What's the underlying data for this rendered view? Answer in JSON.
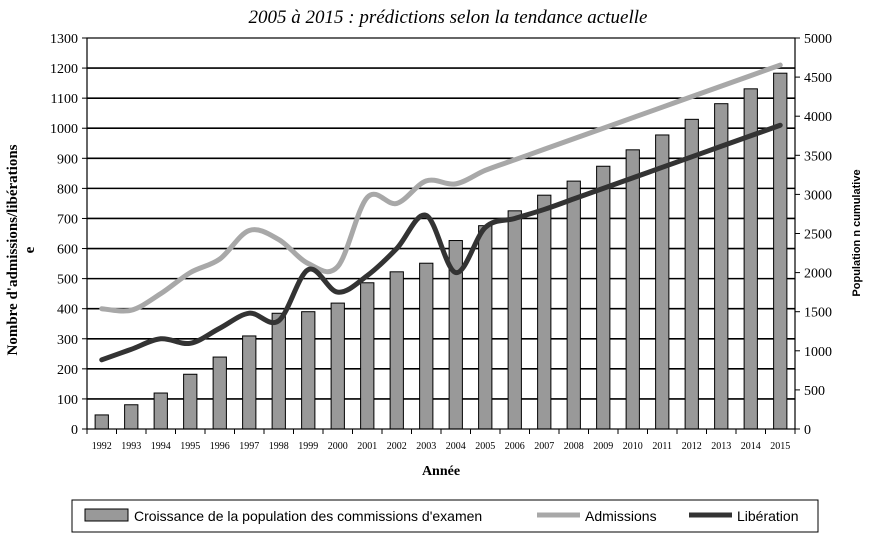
{
  "chart_data": {
    "type": "bar",
    "title": "2005 à  2015 : prédictions selon la tendance actuelle",
    "xlabel": "Année",
    "ylabel": "Nombre d'admissions/libérations",
    "ylabel_extra": "e",
    "y2label": "Population n cumulative",
    "ylim": [
      0,
      1300
    ],
    "y2lim": [
      0,
      5000
    ],
    "y_ticks": [
      "0",
      "100",
      "200",
      "300",
      "400",
      "500",
      "600",
      "700",
      "800",
      "900",
      "1000",
      "1100",
      "1200",
      "1300"
    ],
    "y2_ticks": [
      "0",
      "500",
      "1000",
      "1500",
      "2000",
      "2500",
      "3000",
      "3500",
      "4000",
      "4500",
      "5000"
    ],
    "categories": [
      "1992",
      "1993",
      "1994",
      "1995",
      "1996",
      "1997",
      "1998",
      "1999",
      "2000",
      "2001",
      "2002",
      "2003",
      "2004",
      "2005",
      "2006",
      "2007",
      "2008",
      "2009",
      "2010",
      "2011",
      "2012",
      "2013",
      "2014",
      "2015"
    ],
    "grid": true,
    "legend_position": "bottom",
    "series": [
      {
        "name": "Croissance de la population des commissions d'examen",
        "type": "bar",
        "axis": "right",
        "color": "#999999",
        "values": [
          180,
          310,
          460,
          700,
          920,
          1190,
          1480,
          1500,
          1610,
          1870,
          2010,
          2120,
          2410,
          2600,
          2790,
          2990,
          3170,
          3360,
          3570,
          3760,
          3960,
          4160,
          4350,
          4550
        ]
      },
      {
        "name": "Admissions",
        "type": "line",
        "axis": "left",
        "color": "#a8a8a8",
        "values": [
          400,
          395,
          450,
          520,
          565,
          660,
          630,
          550,
          540,
          770,
          750,
          825,
          815,
          860,
          895,
          930,
          965,
          1000,
          1035,
          1070,
          1105,
          1140,
          1175,
          1210
        ]
      },
      {
        "name": "Libération",
        "type": "line",
        "axis": "left",
        "color": "#333333",
        "values": [
          230,
          265,
          300,
          285,
          335,
          385,
          360,
          530,
          455,
          510,
          600,
          710,
          520,
          670,
          700,
          730,
          765,
          800,
          835,
          870,
          905,
          940,
          975,
          1010
        ]
      }
    ]
  }
}
